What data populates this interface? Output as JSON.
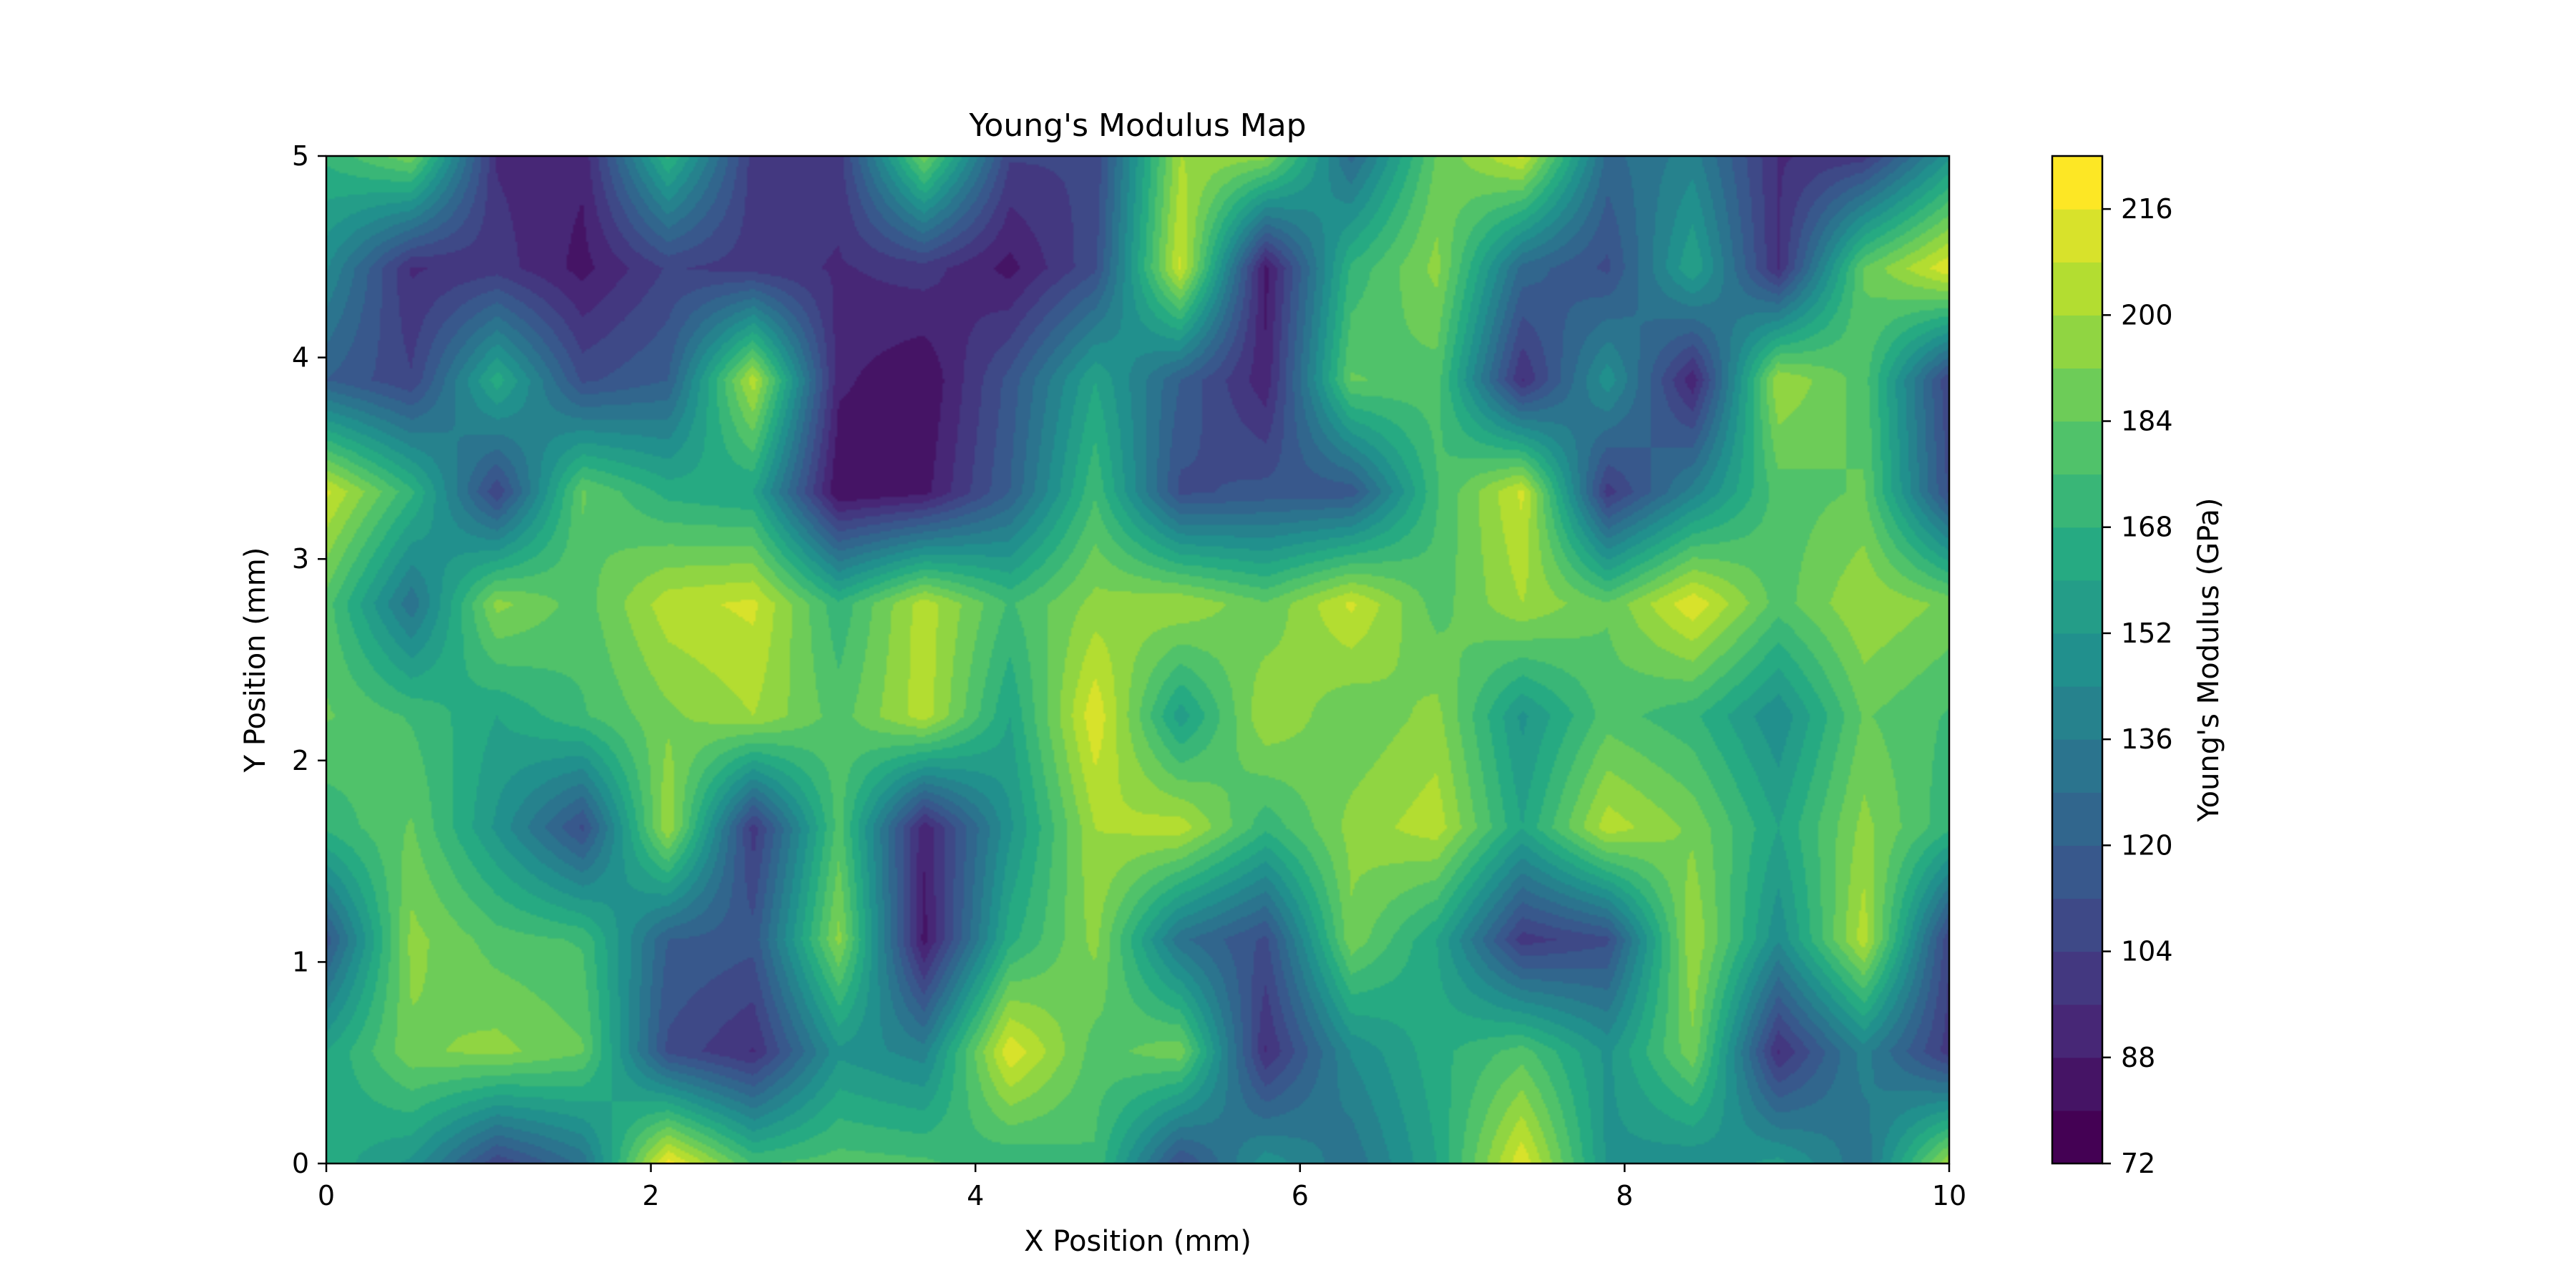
{
  "chart_data": {
    "type": "heatmap",
    "subtype": "filled-contour",
    "title": "Young's Modulus Map",
    "xlabel": "X Position (mm)",
    "ylabel": "Y Position (mm)",
    "colorbar_label": "Young's Modulus (GPa)",
    "colormap": "viridis",
    "xlim": [
      0,
      10
    ],
    "ylim": [
      0,
      5
    ],
    "clim": [
      72,
      224
    ],
    "x_ticks": [
      "0",
      "2",
      "4",
      "6",
      "8",
      "10"
    ],
    "y_ticks": [
      "0",
      "1",
      "2",
      "3",
      "4",
      "5"
    ],
    "colorbar_ticks": [
      "72",
      "88",
      "104",
      "120",
      "136",
      "152",
      "168",
      "184",
      "200",
      "216"
    ],
    "level_step": 8,
    "x": [
      0,
      0.526,
      1.053,
      1.579,
      2.105,
      2.632,
      3.158,
      3.684,
      4.211,
      4.737,
      5.263,
      5.789,
      6.316,
      6.842,
      7.368,
      7.895,
      8.421,
      8.947,
      9.474,
      10
    ],
    "y": [
      0,
      0.556,
      1.111,
      1.667,
      2.222,
      2.778,
      3.333,
      3.889,
      4.444,
      5
    ],
    "z": [
      [
        165,
        150,
        105,
        130,
        220,
        175,
        180,
        178,
        168,
        175,
        110,
        150,
        130,
        160,
        215,
        150,
        145,
        155,
        130,
        200
      ],
      [
        160,
        190,
        195,
        185,
        110,
        95,
        150,
        140,
        215,
        180,
        190,
        95,
        145,
        165,
        180,
        150,
        190,
        95,
        140,
        100
      ],
      [
        115,
        195,
        180,
        175,
        120,
        115,
        195,
        85,
        165,
        195,
        130,
        110,
        190,
        160,
        100,
        110,
        200,
        145,
        205,
        105
      ],
      [
        170,
        185,
        150,
        110,
        200,
        100,
        180,
        90,
        150,
        200,
        205,
        170,
        195,
        205,
        160,
        205,
        190,
        160,
        195,
        170
      ],
      [
        185,
        175,
        160,
        175,
        190,
        200,
        180,
        205,
        160,
        215,
        155,
        200,
        185,
        195,
        150,
        180,
        170,
        145,
        185,
        175
      ],
      [
        180,
        130,
        195,
        180,
        205,
        210,
        170,
        205,
        175,
        195,
        200,
        185,
        210,
        180,
        200,
        185,
        215,
        180,
        200,
        190
      ],
      [
        210,
        170,
        105,
        185,
        165,
        160,
        80,
        85,
        120,
        175,
        110,
        115,
        115,
        175,
        210,
        100,
        140,
        180,
        185,
        110
      ],
      [
        120,
        105,
        165,
        110,
        120,
        205,
        90,
        80,
        115,
        160,
        120,
        90,
        185,
        180,
        95,
        150,
        90,
        200,
        180,
        105
      ],
      [
        145,
        95,
        100,
        85,
        105,
        100,
        95,
        100,
        85,
        110,
        210,
        85,
        170,
        195,
        125,
        110,
        160,
        95,
        185,
        215
      ],
      [
        170,
        190,
        95,
        90,
        170,
        100,
        100,
        190,
        105,
        105,
        200,
        195,
        125,
        185,
        210,
        125,
        140,
        95,
        100,
        150
      ]
    ]
  }
}
